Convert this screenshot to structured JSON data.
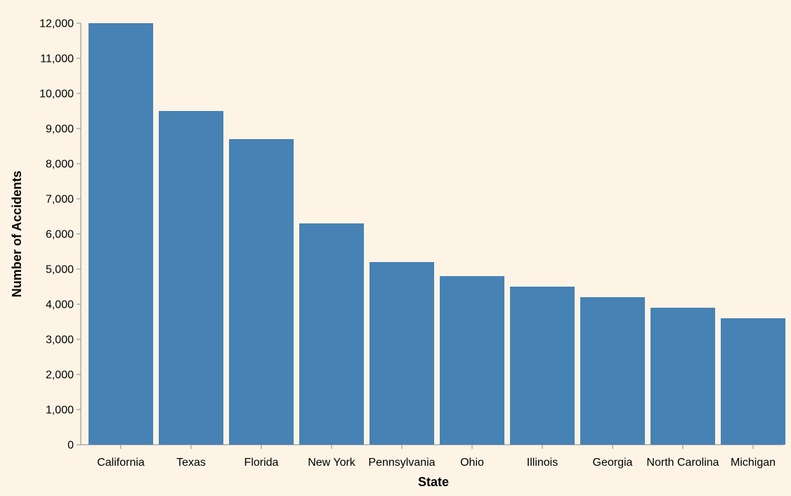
{
  "chart_data": {
    "type": "bar",
    "categories": [
      "California",
      "Texas",
      "Florida",
      "New York",
      "Pennsylvania",
      "Ohio",
      "Illinois",
      "Georgia",
      "North Carolina",
      "Michigan"
    ],
    "values": [
      12000,
      9500,
      8700,
      6300,
      5200,
      4800,
      4500,
      4200,
      3900,
      3600
    ],
    "xlabel": "State",
    "ylabel": "Number of Accidents",
    "ylim": [
      0,
      12000
    ],
    "yticks": [
      0,
      1000,
      2000,
      3000,
      4000,
      5000,
      6000,
      7000,
      8000,
      9000,
      10000,
      11000,
      12000
    ],
    "ytick_labels": [
      "0",
      "1,000",
      "2,000",
      "3,000",
      "4,000",
      "5,000",
      "6,000",
      "7,000",
      "8,000",
      "9,000",
      "10,000",
      "11,000",
      "12,000"
    ],
    "grid": false,
    "legend": "none",
    "colors": {
      "bar": "#4682b4",
      "background": "#fdf4e6",
      "axis": "#888888"
    }
  }
}
